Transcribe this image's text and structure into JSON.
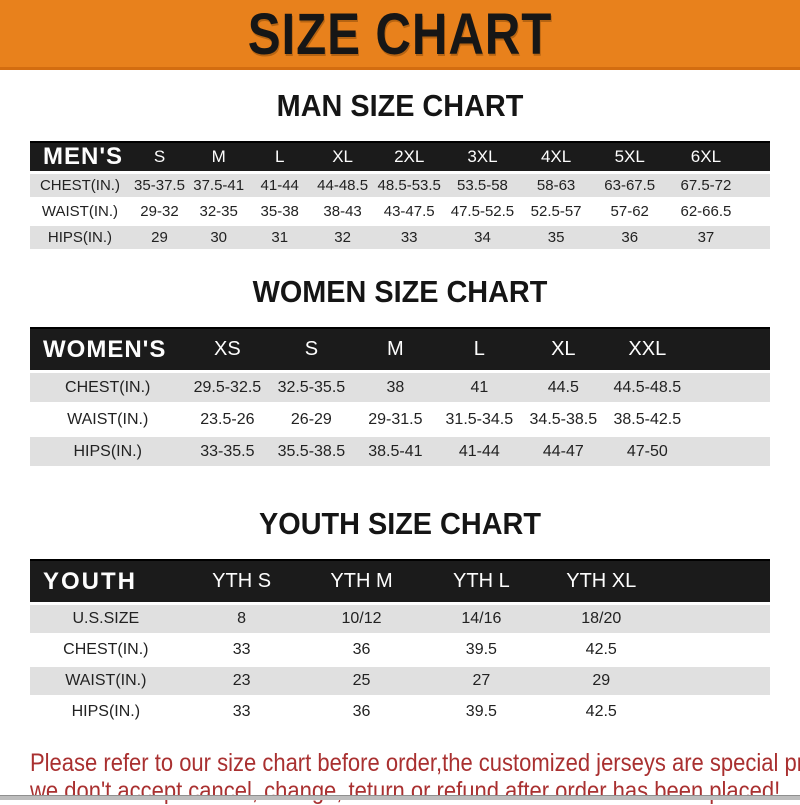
{
  "banner": {
    "title": "SIZE CHART"
  },
  "colors": {
    "orange": "#e8811c",
    "header_bar_black": "#1b1b1b",
    "row_gray": "#e0e0e0",
    "row_white": "#ffffff",
    "note_red": "#a93030",
    "title_black": "#151515"
  },
  "tables": [
    {
      "id": "men",
      "title": "MAN SIZE CHART",
      "header_label": "MEN'S",
      "columns": [
        "S",
        "M",
        "L",
        "XL",
        "2XL",
        "3XL",
        "4XL",
        "5XL",
        "6XL"
      ],
      "rows": [
        {
          "label": "CHEST(IN.)",
          "values": [
            "35-37.5",
            "37.5-41",
            "41-44",
            "44-48.5",
            "48.5-53.5",
            "53.5-58",
            "58-63",
            "63-67.5",
            "67.5-72"
          ]
        },
        {
          "label": "WAIST(IN.)",
          "values": [
            "29-32",
            "32-35",
            "35-38",
            "38-43",
            "43-47.5",
            "47.5-52.5",
            "52.5-57",
            "57-62",
            "62-66.5"
          ]
        },
        {
          "label": "HIPS(IN.)",
          "values": [
            "29",
            "30",
            "31",
            "32",
            "33",
            "34",
            "35",
            "36",
            "37"
          ]
        }
      ]
    },
    {
      "id": "women",
      "title": "WOMEN SIZE CHART",
      "header_label": "WOMEN'S",
      "columns": [
        "XS",
        "S",
        "M",
        "L",
        "XL",
        "XXL"
      ],
      "rows": [
        {
          "label": "CHEST(IN.)",
          "values": [
            "29.5-32.5",
            "32.5-35.5",
            "38",
            "41",
            "44.5",
            "44.5-48.5"
          ]
        },
        {
          "label": "WAIST(IN.)",
          "values": [
            "23.5-26",
            "26-29",
            "29-31.5",
            "31.5-34.5",
            "34.5-38.5",
            "38.5-42.5"
          ]
        },
        {
          "label": "HIPS(IN.)",
          "values": [
            "33-35.5",
            "35.5-38.5",
            "38.5-41",
            "41-44",
            "44-47",
            "47-50"
          ]
        }
      ]
    },
    {
      "id": "youth",
      "title": "YOUTH SIZE CHART",
      "header_label": "YOUTH",
      "columns": [
        "YTH S",
        "YTH M",
        "YTH L",
        "YTH XL"
      ],
      "rows": [
        {
          "label": "U.S.SIZE",
          "values": [
            "8",
            "10/12",
            "14/16",
            "18/20"
          ]
        },
        {
          "label": "CHEST(IN.)",
          "values": [
            "33",
            "36",
            "39.5",
            "42.5"
          ]
        },
        {
          "label": "WAIST(IN.)",
          "values": [
            "23",
            "25",
            "27",
            "29"
          ]
        },
        {
          "label": "HIPS(IN.)",
          "values": [
            "33",
            "36",
            "39.5",
            "42.5"
          ]
        }
      ]
    }
  ],
  "note": {
    "line1": "Please refer to our size chart before order,the customized jerseys are special products,",
    "line2": "we don't accept cancel, change, teturn or refund after order has been placed!"
  }
}
